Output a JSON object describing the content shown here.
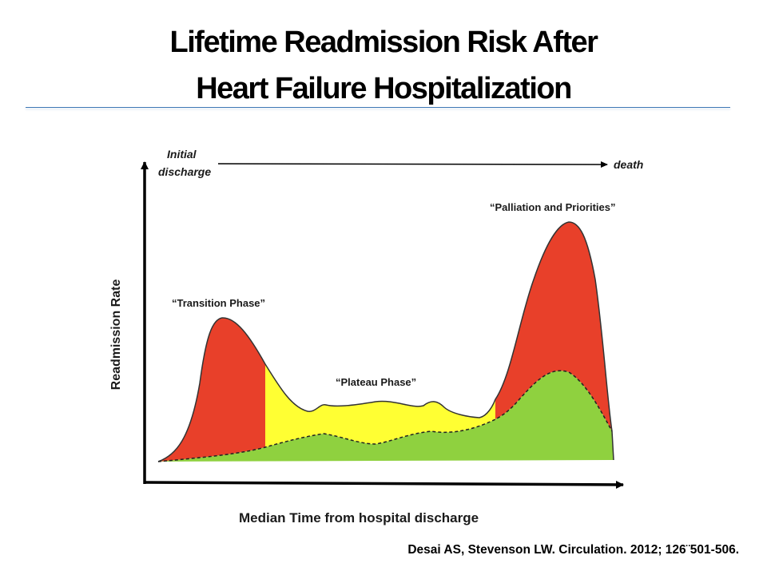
{
  "title": {
    "line1": "Lifetime Readmission Risk After",
    "line2": "Heart Failure Hospitalization"
  },
  "diagram": {
    "timeline_start": "Initial discharge",
    "timeline_start_line1": "Initial",
    "timeline_start_line2": "discharge",
    "timeline_end": "death",
    "y_axis_label": "Readmission Rate",
    "x_axis_label": "Median Time from hospital discharge",
    "phases": [
      {
        "label": "“Transition Phase”"
      },
      {
        "label": "“Plateau Phase”"
      },
      {
        "label": "“Palliation and Priorities”"
      }
    ],
    "colors": {
      "transition": "#e8402a",
      "plateau": "#ffff33",
      "palliation": "#e8402a",
      "baseline": "#8fd13f"
    }
  },
  "citation": "Desai AS, Stevenson LW. Circulation. 2012; 126¨501-506."
}
